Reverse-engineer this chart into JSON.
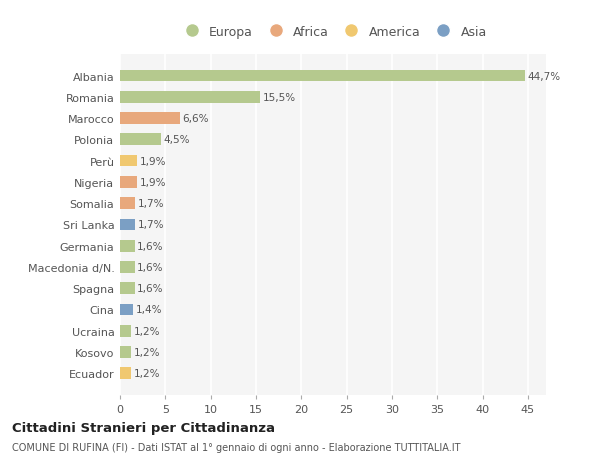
{
  "categories": [
    "Albania",
    "Romania",
    "Marocco",
    "Polonia",
    "Perù",
    "Nigeria",
    "Somalia",
    "Sri Lanka",
    "Germania",
    "Macedonia d/N.",
    "Spagna",
    "Cina",
    "Ucraina",
    "Kosovo",
    "Ecuador"
  ],
  "values": [
    44.7,
    15.5,
    6.6,
    4.5,
    1.9,
    1.9,
    1.7,
    1.7,
    1.6,
    1.6,
    1.6,
    1.4,
    1.2,
    1.2,
    1.2
  ],
  "labels": [
    "44,7%",
    "15,5%",
    "6,6%",
    "4,5%",
    "1,9%",
    "1,9%",
    "1,7%",
    "1,7%",
    "1,6%",
    "1,6%",
    "1,6%",
    "1,4%",
    "1,2%",
    "1,2%",
    "1,2%"
  ],
  "continents": [
    "Europa",
    "Europa",
    "Africa",
    "Europa",
    "America",
    "Africa",
    "Africa",
    "Asia",
    "Europa",
    "Europa",
    "Europa",
    "Asia",
    "Europa",
    "Europa",
    "America"
  ],
  "colors": {
    "Europa": "#b5c98e",
    "Africa": "#e8a87c",
    "America": "#f0c870",
    "Asia": "#7b9fc4"
  },
  "bg_color": "#ffffff",
  "plot_bg_color": "#f5f5f5",
  "title": "Cittadini Stranieri per Cittadinanza",
  "subtitle": "COMUNE DI RUFINA (FI) - Dati ISTAT al 1° gennaio di ogni anno - Elaborazione TUTTITALIA.IT",
  "xlim": [
    0,
    47
  ],
  "xticks": [
    0,
    5,
    10,
    15,
    20,
    25,
    30,
    35,
    40,
    45
  ],
  "legend_order": [
    "Europa",
    "Africa",
    "America",
    "Asia"
  ]
}
